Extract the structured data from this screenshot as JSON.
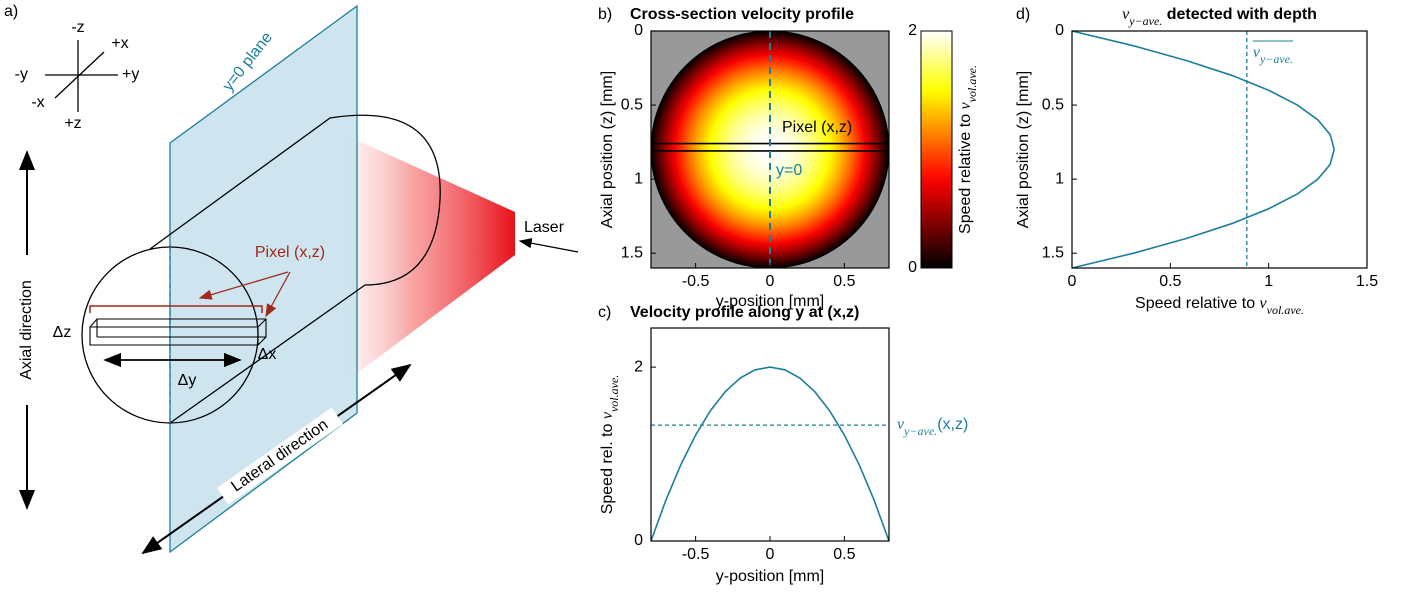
{
  "diagram": {
    "panel_label": "a)",
    "axes": {
      "minus_z": "-z",
      "plus_x": "+x",
      "minus_y": "-y",
      "plus_y": "+y",
      "minus_x": "-x",
      "plus_z": "+z"
    },
    "plane_label": "y=0 plane",
    "pixel_label": "Pixel (x,z)",
    "laser_label": "Laser",
    "delta_z": "Δz",
    "delta_y": "Δy",
    "delta_x": "Δx",
    "axial_label": "Axial direction",
    "lateral_label": "Lateral direction"
  },
  "chart_data": [
    {
      "type": "heatmap",
      "panel_label": "b)",
      "title": "Cross-section velocity profile",
      "xlabel": "y-position [mm]",
      "ylabel": "Axial position (z) [mm]",
      "xlim": [
        -0.8,
        0.8
      ],
      "ylim": [
        1.6,
        0
      ],
      "xticks": [
        -0.5,
        0,
        0.5
      ],
      "yticks": [
        0,
        0.5,
        1,
        1.5
      ],
      "center": [
        0,
        0.8
      ],
      "radius": 0.8,
      "peak": 2,
      "colormap": "hot",
      "background": "#999999",
      "clim": [
        0,
        2
      ],
      "cticks": [
        0,
        2
      ],
      "cbar_label": "Speed relative to ",
      "cbar_label_var": "v",
      "cbar_label_sub": "vol.ave.",
      "pixel_band": [
        0.76,
        0.81
      ],
      "pixel_label": "Pixel (x,z)",
      "vline": 0,
      "vline_label": "y=0",
      "line_color": "#1b7f9b"
    },
    {
      "type": "line",
      "panel_label": "c)",
      "title": "Velocity profile along y at (x,z)",
      "xlabel": "y-position [mm]",
      "ylabel": "Speed rel. to ",
      "ylabel_var": "v",
      "ylabel_sub": "vol.ave.",
      "xlim": [
        -0.8,
        0.8
      ],
      "ylim": [
        0,
        2.45
      ],
      "xticks": [
        -0.5,
        0,
        0.5
      ],
      "yticks": [
        0,
        2
      ],
      "x": [
        -0.8,
        -0.7,
        -0.6,
        -0.5,
        -0.4,
        -0.3,
        -0.2,
        -0.1,
        0,
        0.1,
        0.2,
        0.3,
        0.4,
        0.5,
        0.6,
        0.7,
        0.8
      ],
      "values": [
        0,
        0.469,
        0.875,
        1.219,
        1.5,
        1.719,
        1.875,
        1.969,
        2,
        1.969,
        1.875,
        1.719,
        1.5,
        1.219,
        0.875,
        0.469,
        0
      ],
      "color": "#1b7f9b",
      "hline": 1.333,
      "hline_label_var": "v",
      "hline_label_sub": "y−ave.",
      "hline_label_rest": "(x,z)"
    },
    {
      "type": "line",
      "panel_label": "d)",
      "title_var": "v",
      "title_sub": "y−ave.",
      "title_rest": " detected with depth",
      "xlabel": "Speed relative to ",
      "xlabel_var": "v",
      "xlabel_sub": "vol.ave.",
      "ylabel": "Axial position (z) [mm]",
      "xlim": [
        0,
        1.5
      ],
      "ylim": [
        1.6,
        0
      ],
      "xticks": [
        0,
        0.5,
        1,
        1.5
      ],
      "yticks": [
        0,
        0.5,
        1,
        1.5
      ],
      "depth": [
        0,
        0.1,
        0.2,
        0.3,
        0.4,
        0.5,
        0.6,
        0.7,
        0.8,
        0.9,
        1.0,
        1.1,
        1.2,
        1.3,
        1.4,
        1.5,
        1.6
      ],
      "values": [
        0,
        0.313,
        0.583,
        0.813,
        1.0,
        1.146,
        1.25,
        1.313,
        1.333,
        1.313,
        1.25,
        1.146,
        1.0,
        0.813,
        0.583,
        0.313,
        0
      ],
      "color": "#1b7f9b",
      "vline": 0.889,
      "vline_label_var": "v",
      "vline_label_sub": "y−ave."
    }
  ]
}
